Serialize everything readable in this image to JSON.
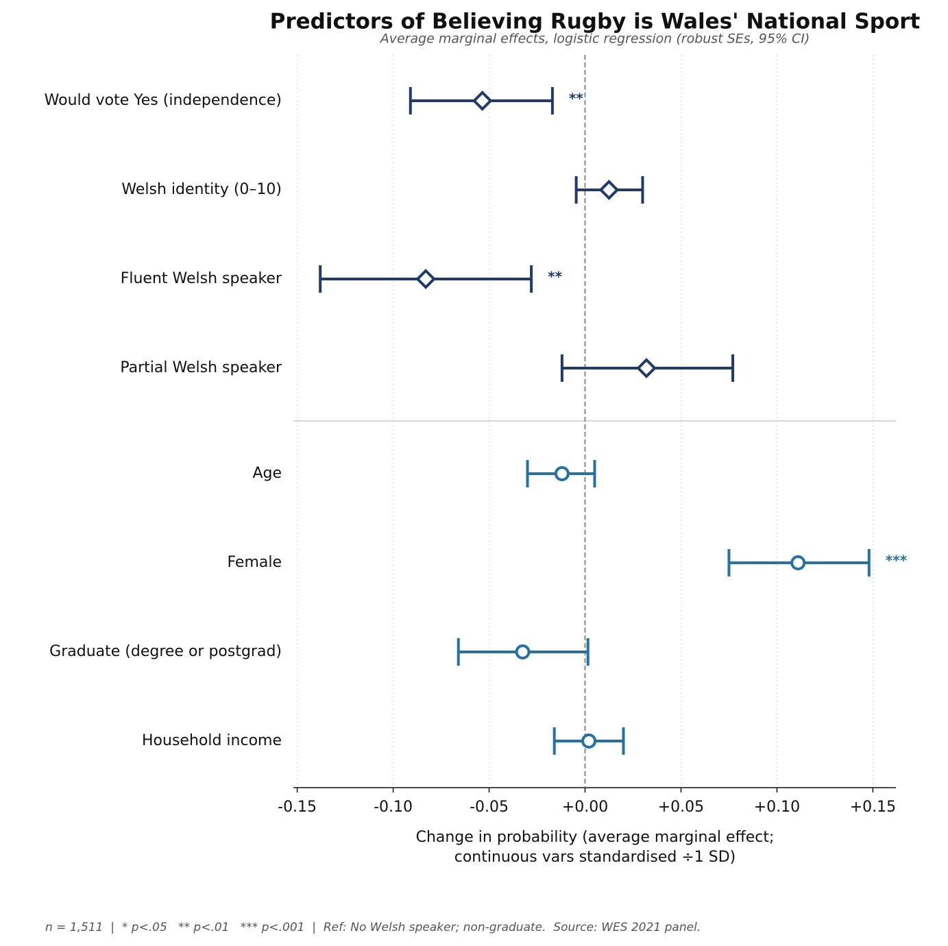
{
  "chart_data": {
    "type": "forest",
    "title": "Predictors of Believing Rugby is Wales' National Sport",
    "subtitle": "Average marginal effects, logistic regression (robust SEs, 95% CI)",
    "xlabel": [
      "Change in probability (average marginal effect;",
      "continuous vars standardised ÷1 SD)"
    ],
    "footnote": "n = 1,511  |  * p<.05   ** p<.01   *** p<.001  |  Ref: No Welsh speaker; non-graduate.  Source: WES 2021 panel.",
    "xlim": [
      -0.152,
      0.162
    ],
    "xticks": [
      -0.15,
      {
        "value": -0.1,
        "label": "-0.10"
      },
      {
        "value": -0.05,
        "label": "-0.05"
      },
      {
        "value": 0,
        "label": "+0.00"
      },
      {
        "value": 0.05,
        "label": "+0.05"
      },
      {
        "value": 0.1,
        "label": "+0.10"
      },
      {
        "value": 0.15,
        "label": "+0.15"
      }
    ],
    "grid": true,
    "reference_line": 0,
    "groups": [
      {
        "marker": "diamond",
        "color": "#1f3a6e",
        "categories": [
          "Would vote Yes (independence)",
          "Welsh identity (0–10)",
          "Fluent Welsh speaker",
          "Partial Welsh speaker"
        ],
        "values": [
          -0.0535,
          0.0125,
          -0.083,
          0.032
        ],
        "ci_low": [
          -0.091,
          -0.0046,
          -0.138,
          -0.012
        ],
        "ci_high": [
          -0.017,
          0.03,
          -0.028,
          0.077
        ],
        "sig": [
          "**",
          null,
          "**",
          null
        ]
      },
      {
        "marker": "circle",
        "color": "#2471a8",
        "categories": [
          "Age",
          "Female",
          "Graduate (degree or postgrad)",
          "Household income"
        ],
        "values": [
          -0.012,
          0.111,
          -0.0325,
          0.002
        ],
        "ci_low": [
          -0.03,
          0.075,
          -0.066,
          -0.016
        ],
        "ci_high": [
          0.005,
          0.148,
          0.0015,
          0.02
        ],
        "sig": [
          null,
          "***",
          null,
          null
        ]
      }
    ]
  }
}
